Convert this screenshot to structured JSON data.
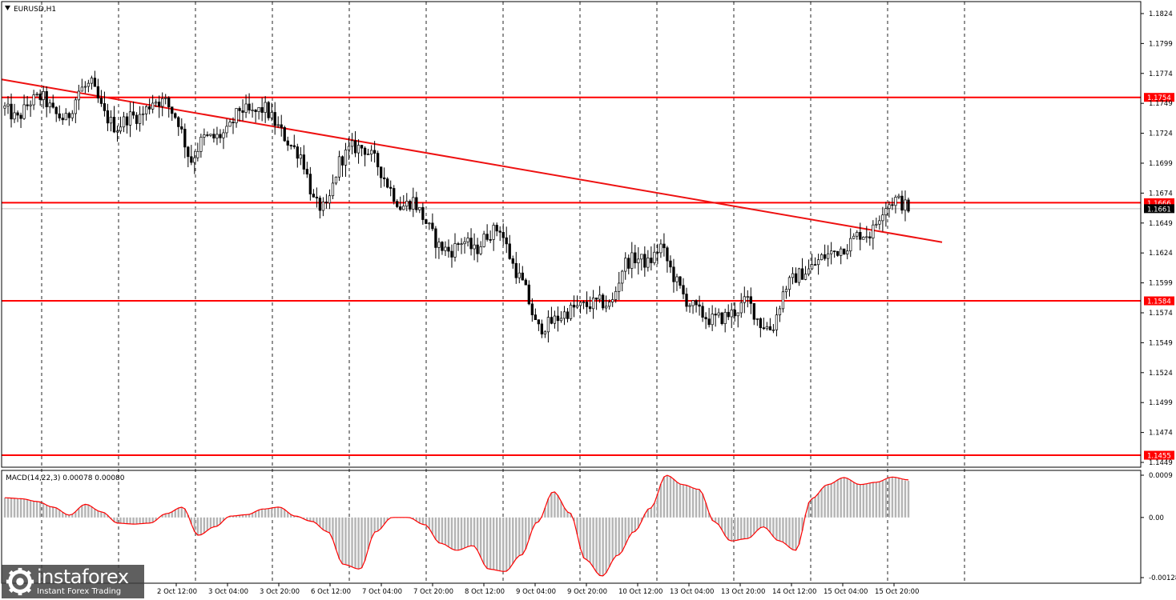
{
  "chart_data": {
    "type": "candlestick",
    "symbol_label": "EURUSD,H1",
    "x_tick_labels": [
      "2 Oct 12:00",
      "3 Oct 04:00",
      "3 Oct 20:00",
      "6 Oct 12:00",
      "7 Oct 04:00",
      "7 Oct 20:00",
      "8 Oct 12:00",
      "9 Oct 04:00",
      "9 Oct 20:00",
      "10 Oct 12:00",
      "13 Oct 04:00",
      "13 Oct 20:00",
      "14 Oct 12:00",
      "15 Oct 04:00",
      "15 Oct 20:00"
    ],
    "price_axis": {
      "ticks": [
        "1.1824",
        "1.1799",
        "1.1774",
        "1.1749",
        "1.1724",
        "1.1699",
        "1.1674",
        "1.1649",
        "1.1624",
        "1.1599",
        "1.1574",
        "1.1549",
        "1.1524",
        "1.1499",
        "1.1474",
        "1.1449"
      ],
      "range": [
        1.1445,
        1.1834
      ]
    },
    "horizontal_levels": [
      {
        "label": "1.1754",
        "value": 1.1754
      },
      {
        "label": "1.1666",
        "value": 1.1666
      },
      {
        "label": "1.1584",
        "value": 1.1584
      },
      {
        "label": "1.1455",
        "value": 1.1455
      }
    ],
    "current_price": {
      "label": "1.1661",
      "value": 1.1661
    },
    "trendline": {
      "start_value": 1.1769,
      "end_value": 1.1633
    },
    "price_path": [
      1.1745,
      1.1735,
      1.175,
      1.1755,
      1.174,
      1.1735,
      1.176,
      1.1765,
      1.174,
      1.1728,
      1.1738,
      1.1738,
      1.1752,
      1.175,
      1.1735,
      1.17,
      1.172,
      1.172,
      1.1725,
      1.1745,
      1.174,
      1.1745,
      1.173,
      1.1715,
      1.1705,
      1.1665,
      1.166,
      1.17,
      1.1712,
      1.1712,
      1.17,
      1.168,
      1.1662,
      1.1668,
      1.165,
      1.163,
      1.1625,
      1.1635,
      1.1625,
      1.164,
      1.1645,
      1.1615,
      1.1595,
      1.156,
      1.1565,
      1.1572,
      1.1578,
      1.158,
      1.1583,
      1.158,
      1.1615,
      1.162,
      1.1615,
      1.163,
      1.1605,
      1.1585,
      1.1575,
      1.1568,
      1.157,
      1.1575,
      1.1585,
      1.1565,
      1.156,
      1.1595,
      1.1605,
      1.161,
      1.162,
      1.1625,
      1.163,
      1.164,
      1.164,
      1.1663,
      1.1669,
      1.1661
    ],
    "macd": {
      "label": "MACD(14,22,3) 0.00078 0.00080",
      "ticks": [
        "0.0009",
        "0.00",
        "-0.00128"
      ],
      "range": [
        -0.00128,
        0.0009
      ],
      "values": [
        0.00042,
        0.0004,
        0.00034,
        0.00022,
        5e-05,
        0.00028,
        0.00012,
        -0.00012,
        -0.00014,
        -0.00012,
        8e-05,
        0.00022,
        -0.00038,
        -0.0002,
        3e-05,
        6e-05,
        0.00018,
        0.00022,
        3e-05,
        -8e-05,
        -0.0003,
        -0.001,
        -0.0011,
        -0.0003,
        0.0,
        0.0,
        -0.00015,
        -0.00055,
        -0.0007,
        -0.0006,
        -0.0011,
        -0.00115,
        -0.0008,
        -0.0001,
        0.00055,
        0.0001,
        -0.0009,
        -0.00125,
        -0.0008,
        -0.0003,
        0.0002,
        0.0009,
        0.0007,
        0.0006,
        -0.0001,
        -0.0005,
        -0.00045,
        -0.0002,
        -0.0005,
        -0.0007,
        0.0004,
        0.0007,
        0.00085,
        0.0007,
        0.00075,
        0.00086,
        0.00078
      ],
      "signal": [
        0.00042,
        0.0004,
        0.00034,
        0.00022,
        5e-05,
        0.00028,
        0.00012,
        -0.00012,
        -0.00014,
        -0.00012,
        8e-05,
        0.00022,
        -0.00038,
        -0.0002,
        3e-05,
        6e-05,
        0.00018,
        0.00022,
        3e-05,
        -8e-05,
        -0.0003,
        -0.001,
        -0.0011,
        -0.0003,
        0.0,
        0.0,
        -0.00015,
        -0.00055,
        -0.0007,
        -0.0006,
        -0.0011,
        -0.00115,
        -0.0008,
        -0.0001,
        0.00055,
        0.0001,
        -0.0009,
        -0.00125,
        -0.0008,
        -0.0003,
        0.0002,
        0.0009,
        0.0007,
        0.0006,
        -0.0001,
        -0.0005,
        -0.00045,
        -0.0002,
        -0.0005,
        -0.0007,
        0.0004,
        0.0007,
        0.00085,
        0.0007,
        0.00075,
        0.00086,
        0.0008
      ]
    },
    "colors": {
      "level_line": "#ff0000",
      "trendline": "#ee1111",
      "candle": "#000000",
      "grid": "#000000",
      "macd_hist": "#b4b4b4",
      "macd_signal": "#ff0000",
      "badge_text": "#ffffff"
    },
    "grid": true
  },
  "watermark": {
    "brand": "instaforex",
    "tagline": "Instant Forex Trading",
    "icon": "gear-logo-icon"
  }
}
